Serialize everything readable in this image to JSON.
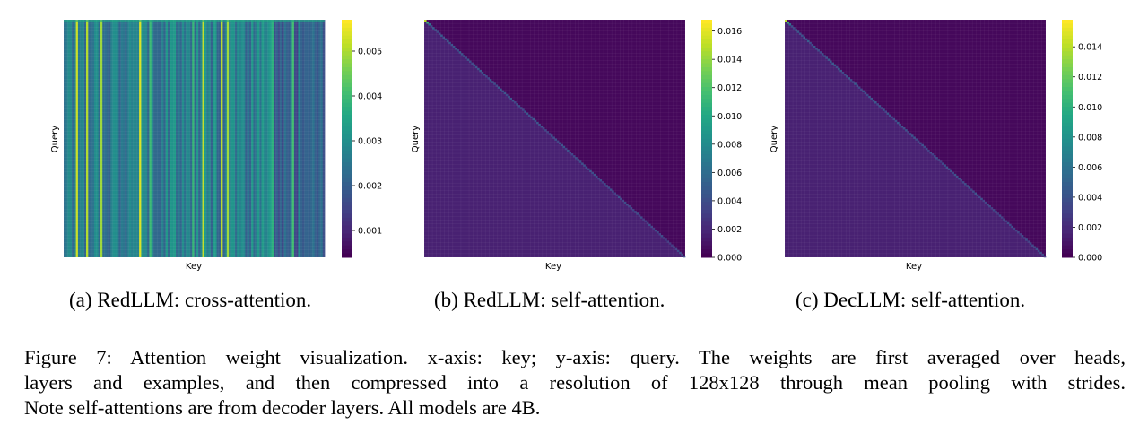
{
  "chart_data": [
    {
      "type": "heatmap",
      "subcaption": "(a) RedLLM: cross-attention.",
      "xlabel": "Key",
      "ylabel": "Query",
      "resolution": [
        128,
        128
      ],
      "colormap": "viridis",
      "colorbar": {
        "min": 0.0004,
        "max": 0.0057,
        "ticks": [
          "0.001",
          "0.002",
          "0.003",
          "0.004",
          "0.005"
        ],
        "tick_values": [
          0.001,
          0.002,
          0.003,
          0.004,
          0.005
        ]
      },
      "pattern": "vertical-stripes"
    },
    {
      "type": "heatmap",
      "subcaption": "(b) RedLLM: self-attention.",
      "xlabel": "Key",
      "ylabel": "Query",
      "resolution": [
        128,
        128
      ],
      "colormap": "viridis",
      "colorbar": {
        "min": 0.0,
        "max": 0.0168,
        "ticks": [
          "0.000",
          "0.002",
          "0.004",
          "0.006",
          "0.008",
          "0.010",
          "0.012",
          "0.014",
          "0.016"
        ],
        "tick_values": [
          0,
          0.002,
          0.004,
          0.006,
          0.008,
          0.01,
          0.012,
          0.014,
          0.016
        ]
      },
      "pattern": "diagonal"
    },
    {
      "type": "heatmap",
      "subcaption": "(c) DecLLM: self-attention.",
      "xlabel": "Key",
      "ylabel": "Query",
      "resolution": [
        128,
        128
      ],
      "colormap": "viridis",
      "colorbar": {
        "min": 0.0,
        "max": 0.0158,
        "ticks": [
          "0.000",
          "0.002",
          "0.004",
          "0.006",
          "0.008",
          "0.010",
          "0.012",
          "0.014"
        ],
        "tick_values": [
          0,
          0.002,
          0.004,
          0.006,
          0.008,
          0.01,
          0.012,
          0.014
        ]
      },
      "pattern": "diagonal"
    }
  ],
  "caption": {
    "line1": "Figure 7:  Attention weight visualization. x-axis: key; y-axis: query. The weights are first averaged over heads,",
    "line2": "layers and examples, and then compressed into a resolution of 128x128 through mean pooling with strides.",
    "line3": "Note self-attentions are from decoder layers. All models are 4B."
  }
}
